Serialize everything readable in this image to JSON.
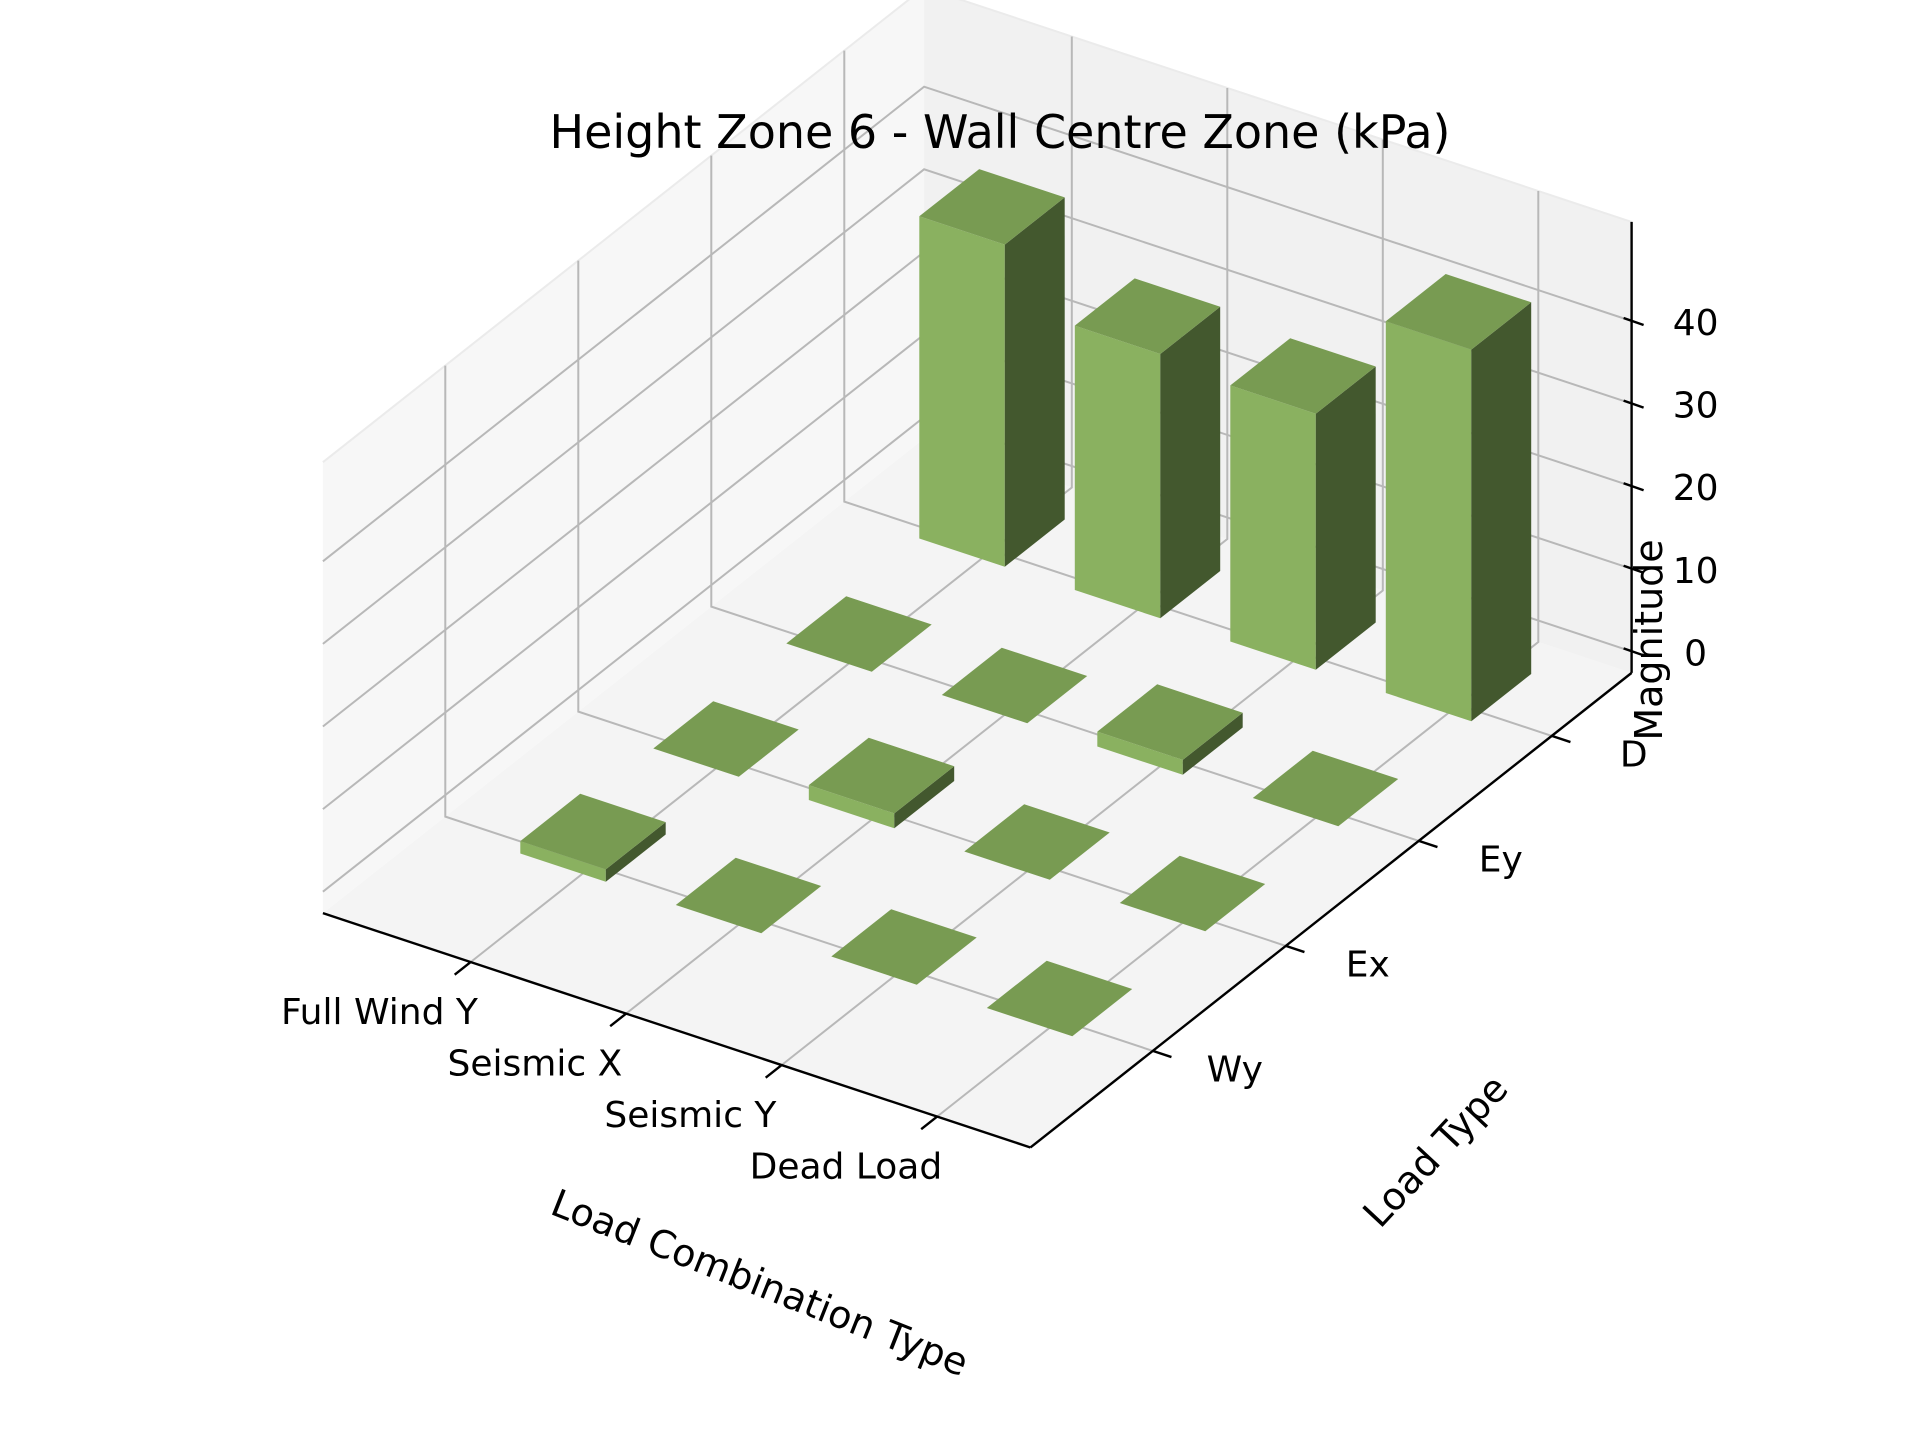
{
  "chart_data": {
    "type": "bar3d",
    "title": "Height Zone 6 - Wall Centre Zone (kPa)",
    "xlabel": "Load Combination Type",
    "ylabel": "Load Type",
    "zlabel": "Magnitude",
    "x_categories": [
      "Full Wind Y",
      "Seismic X",
      "Seismic Y",
      "Dead Load"
    ],
    "y_categories": [
      "Wy",
      "Ex",
      "Ey",
      "D"
    ],
    "z_ticks": [
      0,
      10,
      20,
      30,
      40
    ],
    "zlim": [
      0,
      45
    ],
    "grid": true,
    "bar_color": "#8ab160",
    "values": [
      {
        "x": "Full Wind Y",
        "y": "Wy",
        "value": 1.5
      },
      {
        "x": "Full Wind Y",
        "y": "Ex",
        "value": 0
      },
      {
        "x": "Full Wind Y",
        "y": "Ey",
        "value": 0
      },
      {
        "x": "Full Wind Y",
        "y": "D",
        "value": 39
      },
      {
        "x": "Seismic X",
        "y": "Wy",
        "value": 0
      },
      {
        "x": "Seismic X",
        "y": "Ex",
        "value": 1.8
      },
      {
        "x": "Seismic X",
        "y": "Ey",
        "value": 0
      },
      {
        "x": "Seismic X",
        "y": "D",
        "value": 32
      },
      {
        "x": "Seismic Y",
        "y": "Wy",
        "value": 0
      },
      {
        "x": "Seismic Y",
        "y": "Ex",
        "value": 0
      },
      {
        "x": "Seismic Y",
        "y": "Ey",
        "value": 1.8
      },
      {
        "x": "Seismic Y",
        "y": "D",
        "value": 31
      },
      {
        "x": "Dead Load",
        "y": "Wy",
        "value": 0
      },
      {
        "x": "Dead Load",
        "y": "Ex",
        "value": 0
      },
      {
        "x": "Dead Load",
        "y": "Ey",
        "value": 0
      },
      {
        "x": "Dead Load",
        "y": "D",
        "value": 45
      }
    ]
  }
}
